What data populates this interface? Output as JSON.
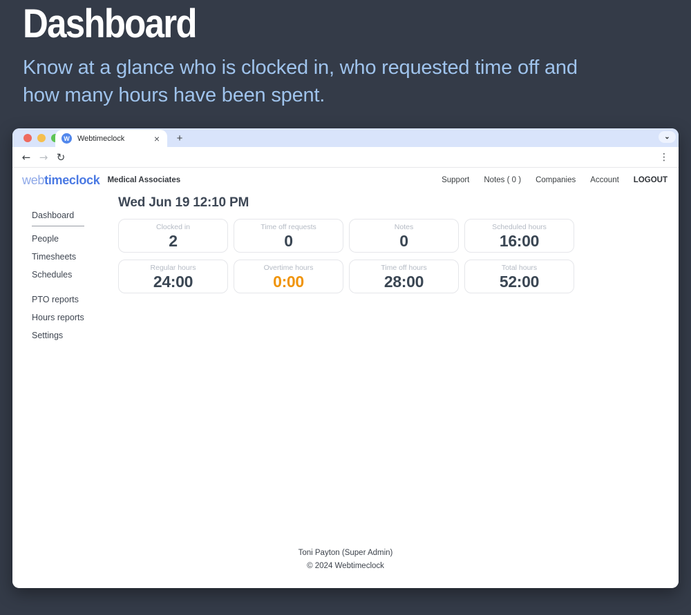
{
  "hero": {
    "title": "Dashboard",
    "subtitle": "Know at a glance who is clocked in, who requested time off and how many hours have been spent."
  },
  "browser": {
    "tab_title": "Webtimeclock",
    "favicon_letter": "W",
    "icons": {
      "close_tab": "×",
      "new_tab": "+",
      "tab_list": "⌄",
      "back": "←",
      "forward": "→",
      "refresh": "↻",
      "menu": "⋮"
    }
  },
  "header": {
    "logo_web": "web",
    "logo_timeclock": "timeclock",
    "company": "Medical Associates",
    "nav": [
      {
        "label": "Support"
      },
      {
        "label": "Notes ( 0 )"
      },
      {
        "label": "Companies"
      },
      {
        "label": "Account"
      },
      {
        "label": "LOGOUT"
      }
    ]
  },
  "sidebar": {
    "items": [
      {
        "label": "Dashboard",
        "active": true
      },
      {
        "label": "People"
      },
      {
        "label": "Timesheets"
      },
      {
        "label": "Schedules"
      },
      {
        "label": "PTO reports"
      },
      {
        "label": "Hours reports"
      },
      {
        "label": "Settings"
      }
    ]
  },
  "main": {
    "date_heading": "Wed Jun 19 12:10 PM",
    "cards": [
      {
        "label": "Clocked in",
        "value": "2"
      },
      {
        "label": "Time off requests",
        "value": "0"
      },
      {
        "label": "Notes",
        "value": "0"
      },
      {
        "label": "Scheduled hours",
        "value": "16:00"
      },
      {
        "label": "Regular hours",
        "value": "24:00"
      },
      {
        "label": "Overtime hours",
        "value": "0:00",
        "highlight": true
      },
      {
        "label": "Time off hours",
        "value": "28:00"
      },
      {
        "label": "Total hours",
        "value": "52:00"
      }
    ]
  },
  "footer": {
    "user": "Toni Payton (Super Admin)",
    "copyright": "© 2024 Webtimeclock"
  },
  "colors": {
    "background": "#343b48",
    "subtitle_blue": "#9fc3ec",
    "brand_blue": "#4a79e3",
    "brand_blue_light": "#8fa9e8",
    "overtime_orange": "#f0940a",
    "tabbar_blue": "#d9e4fb",
    "traffic_red": "#ee6a5f",
    "traffic_yellow": "#f5bf4f",
    "traffic_green": "#5ec454"
  }
}
